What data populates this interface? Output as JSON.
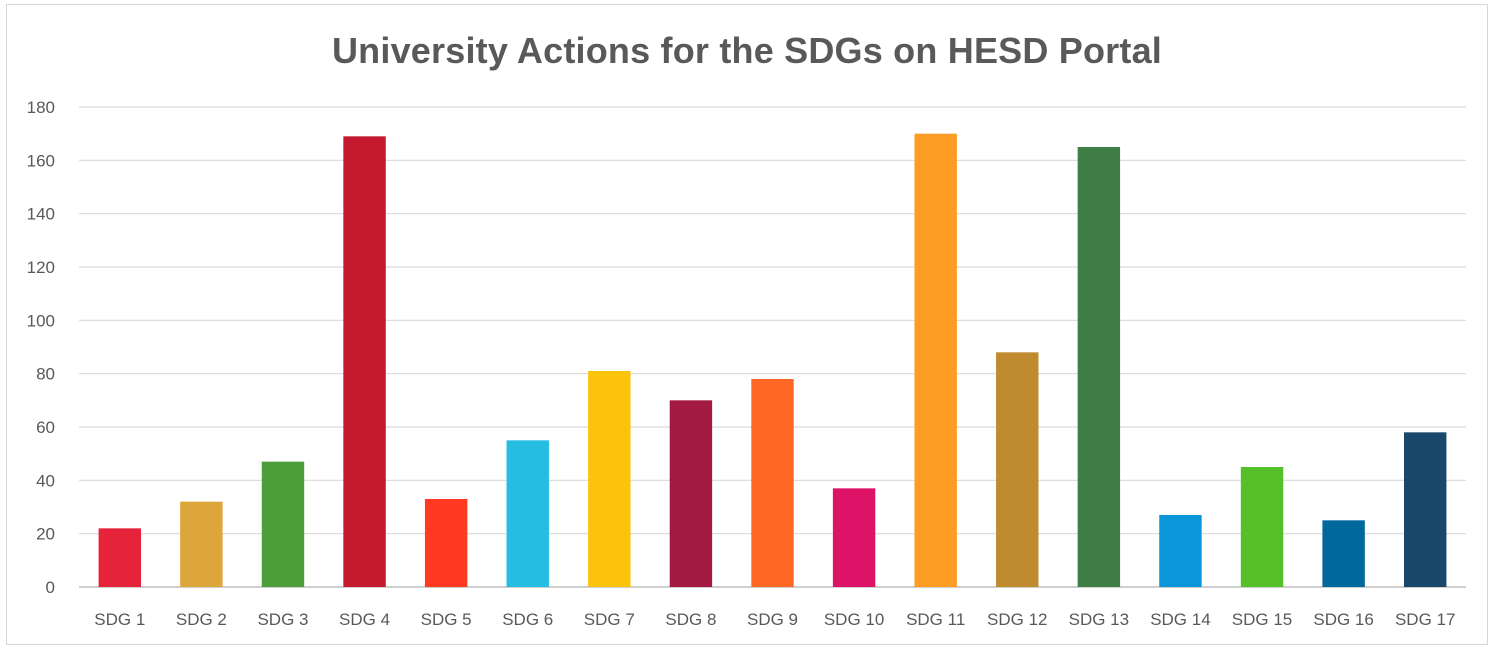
{
  "chart_data": {
    "type": "bar",
    "title": "University Actions for the SDGs on HESD Portal",
    "xlabel": "",
    "ylabel": "",
    "ylim": [
      0,
      180
    ],
    "yticks": [
      0,
      20,
      40,
      60,
      80,
      100,
      120,
      140,
      160,
      180
    ],
    "grid": true,
    "legend": "none",
    "categories": [
      "SDG 1",
      "SDG 2",
      "SDG 3",
      "SDG 4",
      "SDG 5",
      "SDG 6",
      "SDG 7",
      "SDG 8",
      "SDG 9",
      "SDG 10",
      "SDG 11",
      "SDG 12",
      "SDG 13",
      "SDG 14",
      "SDG 15",
      "SDG 16",
      "SDG 17"
    ],
    "values": [
      22,
      32,
      47,
      169,
      33,
      55,
      81,
      70,
      78,
      37,
      170,
      88,
      165,
      27,
      45,
      25,
      58
    ],
    "colors": [
      "#e5243b",
      "#dda63a",
      "#4c9f38",
      "#c5192d",
      "#ff3a21",
      "#26bde2",
      "#fcc30b",
      "#a21942",
      "#fd6925",
      "#dd1367",
      "#fd9d24",
      "#bf8b2e",
      "#3f7e44",
      "#0a97d9",
      "#56c02b",
      "#00689d",
      "#19486a"
    ],
    "gridline_color": "#d9d9d9",
    "axis_line_color": "#bfbfbf"
  }
}
